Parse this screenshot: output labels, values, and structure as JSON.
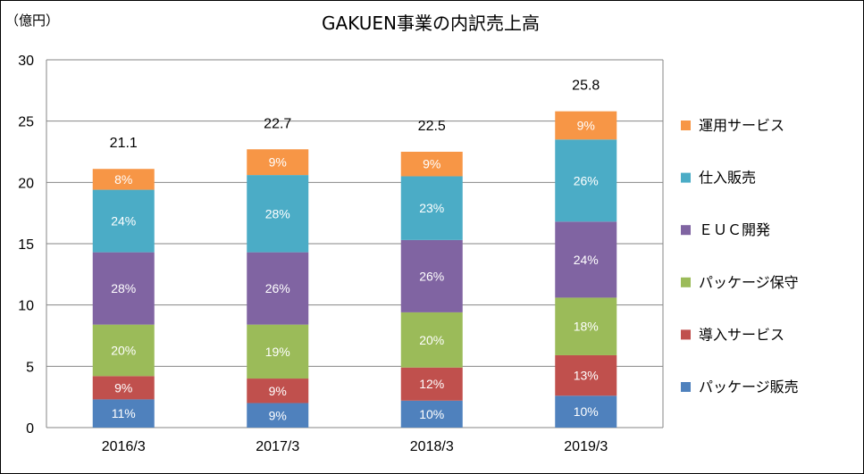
{
  "chart_data": {
    "type": "bar",
    "stacked": true,
    "title": "GAKUEN事業の内訳売上高",
    "unit_label": "（億円）",
    "categories": [
      "2016/3",
      "2017/3",
      "2018/3",
      "2019/3"
    ],
    "totals": [
      21.1,
      22.7,
      22.5,
      25.8
    ],
    "ylim": [
      0,
      30
    ],
    "yticks": [
      0,
      5,
      10,
      15,
      20,
      25,
      30
    ],
    "grid": true,
    "legend_position": "right",
    "series": [
      {
        "name": "パッケージ販売",
        "color": "#4F81BD",
        "values": [
          2.3,
          2.0,
          2.2,
          2.6
        ],
        "labels": [
          "11%",
          "9%",
          "10%",
          "10%"
        ]
      },
      {
        "name": "導入サービス",
        "color": "#C0504D",
        "values": [
          1.9,
          2.0,
          2.7,
          3.3
        ],
        "labels": [
          "9%",
          "9%",
          "12%",
          "13%"
        ]
      },
      {
        "name": "パッケージ保守",
        "color": "#9BBB59",
        "values": [
          4.2,
          4.4,
          4.5,
          4.7
        ],
        "labels": [
          "20%",
          "19%",
          "20%",
          "18%"
        ]
      },
      {
        "name": "ＥＵＣ開発",
        "color": "#8064A2",
        "values": [
          5.9,
          5.9,
          5.9,
          6.2
        ],
        "labels": [
          "28%",
          "26%",
          "26%",
          "24%"
        ]
      },
      {
        "name": "仕入販売",
        "color": "#4BACC6",
        "values": [
          5.1,
          6.3,
          5.2,
          6.7
        ],
        "labels": [
          "24%",
          "28%",
          "23%",
          "26%"
        ]
      },
      {
        "name": "運用サービス",
        "color": "#F79646",
        "values": [
          1.7,
          2.1,
          2.0,
          2.3
        ],
        "labels": [
          "8%",
          "9%",
          "9%",
          "9%"
        ]
      }
    ]
  }
}
